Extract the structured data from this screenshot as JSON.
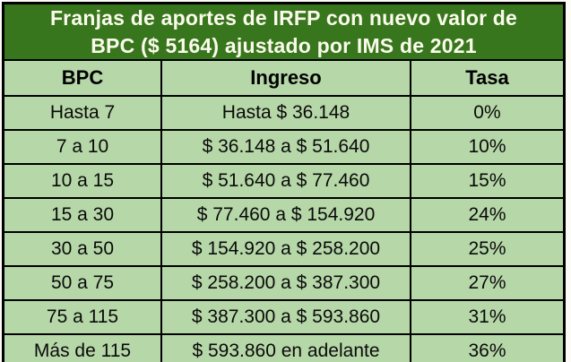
{
  "title": {
    "line1": "Franjas de aportes de IRFP con nuevo valor de",
    "line2": "BPC ($ 5164) ajustado por IMS de 2021",
    "full": "Franjas de aportes de IRFP con nuevo valor de BPC ($ 5164) ajustado por IMS de 2021"
  },
  "chart_data": {
    "type": "table",
    "title": "Franjas de aportes de IRFP con nuevo valor de BPC ($ 5164) ajustado por IMS de 2021",
    "columns": [
      "BPC",
      "Ingreso",
      "Tasa"
    ],
    "rows": [
      [
        "Hasta 7",
        "Hasta $ 36.148",
        "0%"
      ],
      [
        "7 a 10",
        "$ 36.148 a $ 51.640",
        "10%"
      ],
      [
        "10 a 15",
        "$ 51.640 a $ 77.460",
        "15%"
      ],
      [
        "15 a 30",
        "$ 77.460 a $ 154.920",
        "24%"
      ],
      [
        "30 a 50",
        "$ 154.920 a $ 258.200",
        "25%"
      ],
      [
        "50 a 75",
        "$ 258.200 a $ 387.300",
        "27%"
      ],
      [
        "75 a 115",
        "$ 387.300 a $ 593.860",
        "31%"
      ],
      [
        "Más de 115",
        "$ 593.860 en adelante",
        "36%"
      ]
    ],
    "tax_rates_percent": [
      0,
      10,
      15,
      24,
      25,
      27,
      31,
      36
    ],
    "bpc_value_shown_in_title": 5164
  },
  "colors": {
    "banner_bg": "#38761d",
    "banner_text": "#fbfbec",
    "cell_bg": "#b6d7a8",
    "cell_text": "#0a0a0a",
    "border": "#000000"
  }
}
